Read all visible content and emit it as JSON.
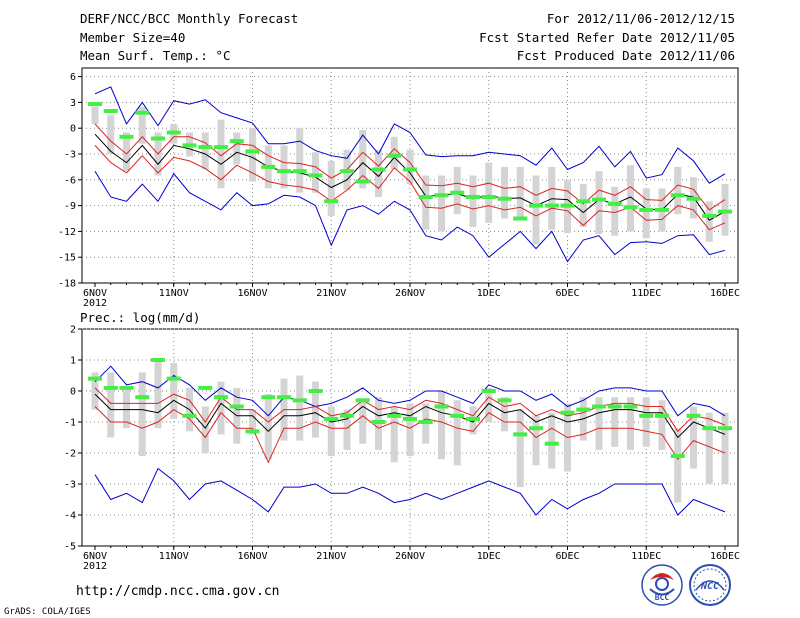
{
  "header": {
    "title": "DERF/NCC/BCC Monthly Forecast",
    "members": "Member Size=40",
    "period": "For 2012/11/06-2012/12/15",
    "refer_date": "Fcst Started Refer Date 2012/11/05",
    "produced_date": "Fcst Produced Date 2012/11/06"
  },
  "footer": {
    "url": "http://cmdp.ncc.cma.gov.cn",
    "grads": "GrADS: COLA/IGES",
    "logo_left": "BCC",
    "logo_right": "NCC"
  },
  "colors": {
    "mean": "#000000",
    "spread": "#dd2222",
    "envelope": "#0000cc",
    "box": "#d4d4d4",
    "observed": "#44ee44"
  },
  "chart_data": [
    {
      "type": "line",
      "title": "Mean Surf. Temp.: °C",
      "xlabel": "",
      "ylabel": "°C",
      "ylim": [
        -18,
        7
      ],
      "y_ticks": [
        6,
        3,
        0,
        -3,
        -6,
        -9,
        -12,
        -15,
        -18
      ],
      "x_ticks": [
        {
          "day": 0,
          "label": "6NOV",
          "sub": "2012"
        },
        {
          "day": 5,
          "label": "11NOV"
        },
        {
          "day": 10,
          "label": "16NOV"
        },
        {
          "day": 15,
          "label": "21NOV"
        },
        {
          "day": 20,
          "label": "26NOV"
        },
        {
          "day": 25,
          "label": "1DEC"
        },
        {
          "day": 30,
          "label": "6DEC"
        },
        {
          "day": 35,
          "label": "11DEC"
        },
        {
          "day": 40,
          "label": "16DEC"
        }
      ],
      "x_start_date": "2012-11-06",
      "series": [
        {
          "name": "ensemble max",
          "role": "envelope",
          "values": [
            4,
            4.8,
            0.5,
            3,
            0.3,
            3.2,
            2.8,
            3.3,
            1.8,
            1.2,
            0.6,
            -1.8,
            -1.8,
            -1.5,
            -2.6,
            -3.2,
            -3.5,
            -0.8,
            -3,
            0.5,
            -0.5,
            -3.1,
            -3.3,
            -3.2,
            -3.2,
            -2.8,
            -3,
            -3.2,
            -4.3,
            -2.3,
            -4.8,
            -4,
            -2.1,
            -4.5,
            -2.7,
            -5.8,
            -5.4,
            -2.3,
            -3.8,
            -6.4,
            -5.3
          ]
        },
        {
          "name": "mean + spread",
          "role": "spread",
          "values": [
            0.5,
            -1.5,
            -3,
            -1,
            -3,
            -1,
            -1,
            -1.7,
            -3.2,
            -1.8,
            -2,
            -3.2,
            -4,
            -4.1,
            -4.5,
            -5.8,
            -4.8,
            -2.8,
            -4.4,
            -2.4,
            -4,
            -6.6,
            -6.7,
            -6.4,
            -6.8,
            -6.4,
            -7,
            -6.8,
            -7.8,
            -7,
            -7.3,
            -8.8,
            -7.2,
            -7.8,
            -6.8,
            -8.3,
            -8.4,
            -6.6,
            -7.1,
            -9.5,
            -8.3
          ]
        },
        {
          "name": "ensemble mean",
          "role": "mean",
          "values": [
            -0.7,
            -2.7,
            -4,
            -2,
            -4.2,
            -2,
            -2.4,
            -3,
            -4.2,
            -2.8,
            -3.4,
            -4.5,
            -5,
            -5.2,
            -5.7,
            -6.9,
            -6,
            -4,
            -5.6,
            -3.4,
            -5.2,
            -7.9,
            -7.8,
            -7.6,
            -8.2,
            -7.8,
            -8.2,
            -8.1,
            -9,
            -8.2,
            -8.3,
            -9.8,
            -8.3,
            -8.8,
            -8,
            -9.4,
            -9.5,
            -7.7,
            -8,
            -10.7,
            -9.7
          ]
        },
        {
          "name": "mean - spread",
          "role": "spread",
          "values": [
            -2,
            -4,
            -5.2,
            -3.2,
            -5.2,
            -3.4,
            -3.8,
            -4.7,
            -6,
            -4.3,
            -5.2,
            -6.2,
            -6.6,
            -6.8,
            -7.2,
            -8.5,
            -7.2,
            -5.5,
            -7,
            -4.6,
            -6.2,
            -9.2,
            -9.3,
            -8.8,
            -9.4,
            -9,
            -9.5,
            -9.2,
            -10.2,
            -9.3,
            -9.6,
            -11.3,
            -9.6,
            -9.8,
            -9.2,
            -10.7,
            -10.6,
            -9,
            -9.5,
            -11.8,
            -11
          ]
        },
        {
          "name": "ensemble min",
          "role": "envelope",
          "values": [
            -5,
            -8,
            -8.5,
            -6.5,
            -8.5,
            -5.3,
            -7.5,
            -8.5,
            -9.5,
            -7.5,
            -9,
            -8.8,
            -7.8,
            -8,
            -9,
            -13.6,
            -9.5,
            -9,
            -10,
            -8.5,
            -9.5,
            -12.5,
            -13,
            -11.5,
            -12.5,
            -15,
            -13.5,
            -12,
            -14,
            -12,
            -15.5,
            -13,
            -12.5,
            -14.7,
            -13.3,
            -13.2,
            -13.4,
            -12.5,
            -12.4,
            -14.7,
            -14.2
          ]
        },
        {
          "name": "observed",
          "role": "observed",
          "values": [
            2.8,
            2,
            -1,
            1.8,
            -1.2,
            -0.5,
            -2,
            -2.2,
            -2.2,
            -1.5,
            -2.7,
            -4.5,
            -5,
            -5,
            -5.5,
            -8.5,
            -5,
            -6.2,
            -4.8,
            -3.2,
            -4.8,
            -8,
            -7.8,
            -7.5,
            -8,
            -8,
            -8.2,
            -10.5,
            -9,
            -9,
            -9,
            -8.5,
            -8.3,
            -8.8,
            -9.2,
            -9.5,
            -9.5,
            -7.8,
            -8.2,
            -10.2,
            -9.7
          ]
        },
        {
          "name": "box top",
          "role": "box",
          "values": [
            2.5,
            1.5,
            -0.5,
            2.5,
            -0.5,
            0.5,
            -0.5,
            -0.5,
            1,
            -0.5,
            0,
            -2,
            -2,
            0,
            -2.8,
            -3.8,
            -2.5,
            -0.2,
            -2.5,
            -1,
            -2.5,
            -5.5,
            -5.5,
            -4.5,
            -5.5,
            -4,
            -4.5,
            -4.5,
            -5.5,
            -4.5,
            -6,
            -6.5,
            -5,
            -6.8,
            -4.3,
            -7,
            -7,
            -4.5,
            -5.7,
            -8.5,
            -6.5
          ]
        },
        {
          "name": "box bottom",
          "role": "box",
          "values": [
            0.5,
            -3,
            -5,
            -1.8,
            -5.5,
            -1.8,
            -3.3,
            -4.8,
            -7,
            -4.2,
            -6.2,
            -7,
            -7,
            -7.5,
            -7.5,
            -10.2,
            -7.2,
            -7,
            -8,
            -4.8,
            -6.5,
            -11.8,
            -12,
            -10,
            -11.5,
            -11,
            -10.5,
            -10.7,
            -13.5,
            -11.8,
            -12.2,
            -11.5,
            -12.3,
            -12.5,
            -12,
            -12.8,
            -12,
            -10,
            -10.5,
            -13.2,
            -12.5
          ]
        }
      ]
    },
    {
      "type": "line",
      "title": "Prec.: log(mm/d)",
      "xlabel": "",
      "ylabel": "log(mm/d)",
      "ylim": [
        -5,
        2
      ],
      "y_ticks": [
        2,
        1,
        0,
        -1,
        -2,
        -3,
        -4,
        -5
      ],
      "x_ticks": [
        {
          "day": 0,
          "label": "6NOV",
          "sub": "2012"
        },
        {
          "day": 5,
          "label": "11NOV"
        },
        {
          "day": 10,
          "label": "16NOV"
        },
        {
          "day": 15,
          "label": "21NOV"
        },
        {
          "day": 20,
          "label": "26NOV"
        },
        {
          "day": 25,
          "label": "1DEC"
        },
        {
          "day": 30,
          "label": "6DEC"
        },
        {
          "day": 35,
          "label": "11DEC"
        },
        {
          "day": 40,
          "label": "16DEC"
        }
      ],
      "x_start_date": "2012-11-06",
      "series": [
        {
          "name": "ensemble max",
          "role": "envelope",
          "values": [
            0.3,
            0.8,
            0.2,
            0.3,
            0.1,
            0.5,
            0.2,
            -0.3,
            0.1,
            -0.2,
            -0.3,
            -0.8,
            -0.2,
            -0.3,
            -0.5,
            -0.4,
            -0.2,
            0.1,
            -0.3,
            -0.4,
            -0.3,
            0,
            0,
            -0.2,
            -0.4,
            0.2,
            0,
            0,
            -0.3,
            -0.1,
            -0.5,
            -0.3,
            0,
            0.1,
            0.1,
            0,
            0,
            -0.8,
            -0.4,
            -0.5,
            -0.8
          ]
        },
        {
          "name": "mean + spread",
          "role": "spread",
          "values": [
            0.1,
            -0.4,
            -0.4,
            -0.4,
            -0.4,
            -0.1,
            -0.3,
            -1,
            -0.2,
            -0.6,
            -0.6,
            -1,
            -0.6,
            -0.6,
            -0.5,
            -0.8,
            -0.7,
            -0.3,
            -0.6,
            -0.5,
            -0.6,
            -0.3,
            -0.4,
            -0.6,
            -0.8,
            -0.2,
            -0.5,
            -0.4,
            -0.8,
            -0.6,
            -0.8,
            -0.7,
            -0.5,
            -0.4,
            -0.4,
            -0.5,
            -0.5,
            -1.3,
            -0.8,
            -0.9,
            -1.1
          ]
        },
        {
          "name": "ensemble mean",
          "role": "mean",
          "values": [
            -0.1,
            -0.6,
            -0.6,
            -0.6,
            -0.7,
            -0.3,
            -0.6,
            -1.2,
            -0.4,
            -0.8,
            -0.8,
            -1.3,
            -0.8,
            -0.8,
            -0.7,
            -1,
            -0.9,
            -0.5,
            -0.8,
            -0.7,
            -0.8,
            -0.5,
            -0.7,
            -0.8,
            -1,
            -0.4,
            -0.7,
            -0.6,
            -1,
            -0.8,
            -1,
            -0.9,
            -0.7,
            -0.6,
            -0.6,
            -0.7,
            -0.7,
            -1.5,
            -1,
            -1.2,
            -1.4
          ]
        },
        {
          "name": "mean - spread",
          "role": "spread",
          "values": [
            -0.5,
            -1,
            -1,
            -1.2,
            -1,
            -0.6,
            -0.9,
            -1.5,
            -0.7,
            -1.2,
            -1.2,
            -2.3,
            -1.2,
            -1.2,
            -1,
            -1.2,
            -1.2,
            -0.8,
            -1.2,
            -1,
            -1.2,
            -0.9,
            -1,
            -1.2,
            -1.3,
            -0.7,
            -1,
            -1,
            -1.5,
            -1.2,
            -1.5,
            -1.4,
            -1.2,
            -1.2,
            -1.2,
            -1.3,
            -1.4,
            -2.2,
            -1.6,
            -1.8,
            -2
          ]
        },
        {
          "name": "ensemble min",
          "role": "envelope",
          "values": [
            -2.7,
            -3.5,
            -3.3,
            -3.6,
            -2.5,
            -2.9,
            -3.5,
            -3,
            -2.9,
            -3.2,
            -3.5,
            -3.9,
            -3.1,
            -3.1,
            -3,
            -3.3,
            -3.3,
            -3.1,
            -3.3,
            -3.6,
            -3.5,
            -3.3,
            -3.5,
            -3.3,
            -3.1,
            -2.9,
            -3.1,
            -3.3,
            -4,
            -3.5,
            -3.8,
            -3.5,
            -3.3,
            -3,
            -3,
            -3,
            -3,
            -4,
            -3.5,
            -3.7,
            -3.9
          ]
        },
        {
          "name": "observed",
          "role": "observed",
          "values": [
            0.4,
            0.1,
            0.1,
            -0.2,
            1,
            0.4,
            -0.8,
            0.1,
            -0.2,
            -0.5,
            -1.3,
            -0.2,
            -0.2,
            -0.3,
            0,
            -0.9,
            -0.8,
            -0.3,
            -1,
            -0.8,
            -0.9,
            -1,
            -0.5,
            -0.8,
            -0.9,
            0,
            -0.3,
            -1.4,
            -1.2,
            -1.7,
            -0.7,
            -0.6,
            -0.5,
            -0.5,
            -0.5,
            -0.8,
            -0.8,
            -2.1,
            -0.8,
            -1.2,
            -1.2
          ]
        },
        {
          "name": "box top",
          "role": "box",
          "values": [
            0.6,
            0.6,
            0.1,
            0.6,
            1,
            0.9,
            0.1,
            -0.5,
            0.3,
            0.1,
            -0.6,
            -0.1,
            0.4,
            0.5,
            0.3,
            -0.5,
            -0.6,
            -0.3,
            -0.2,
            -0.5,
            -0.4,
            -0.4,
            0,
            -0.3,
            -0.5,
            0.1,
            -0.2,
            -0.6,
            -0.8,
            -0.7,
            -0.4,
            -0.2,
            -0.2,
            -0.2,
            -0.2,
            -0.2,
            -0.3,
            -1.2,
            -0.5,
            -0.7,
            -0.7
          ]
        },
        {
          "name": "box bottom",
          "role": "box",
          "values": [
            -0.6,
            -1.5,
            -1.2,
            -2.1,
            -1.2,
            -0.9,
            -1.3,
            -2,
            -1.4,
            -1.7,
            -1.4,
            -2.2,
            -1.6,
            -1.6,
            -1.5,
            -2.1,
            -1.9,
            -1.7,
            -1.9,
            -2.3,
            -2.1,
            -1.7,
            -2.2,
            -2.4,
            -1.4,
            -1,
            -1.3,
            -3.1,
            -2.4,
            -2.5,
            -2.6,
            -1.6,
            -1.9,
            -1.8,
            -1.9,
            -1.8,
            -1.9,
            -3.6,
            -2.5,
            -3,
            -3
          ]
        }
      ]
    }
  ]
}
